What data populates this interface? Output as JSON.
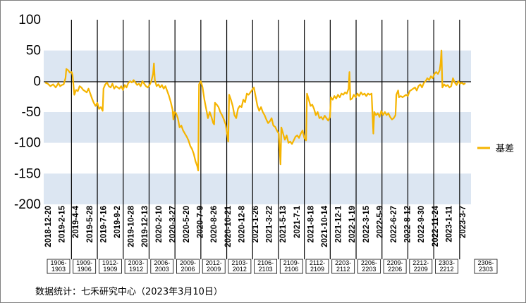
{
  "chart_data": {
    "type": "line",
    "ylim": [
      -200,
      100
    ],
    "yticks": [
      100,
      50,
      0,
      -50,
      -100,
      -150,
      -200
    ],
    "grid": "alternating horizontal bands",
    "legend_position": "right",
    "x_tick_labels": [
      "2018-12-20",
      "2019-2-15",
      "2019-4-4",
      "2019-5-28",
      "2019-7-16",
      "2019-9-2",
      "2019-10-28",
      "2019-12-13",
      "2020-2-10",
      "2020-3-27",
      "2020-5-20",
      "2020-7-9",
      "2020-8-26",
      "2020-10-21",
      "2020-12-8",
      "2021-1-26",
      "2021-3-22",
      "2021-5-13",
      "2021-7-1",
      "2021-8-18",
      "2021-10-14",
      "2021-12-1",
      "2022-1-19",
      "2022-3-15",
      "2022-5-9",
      "2022-6-27",
      "2022-8-12",
      "2022-9-30",
      "2022-11-24",
      "2023-1-11",
      "2023-3-7"
    ],
    "contract_labels": [
      "1906-1903",
      "1909-1906",
      "1912-1909",
      "2003-1912",
      "2006-2003",
      "2009-2006",
      "2012-2009",
      "2103-2012",
      "2106-2103",
      "2109-2106",
      "2112-2109",
      "2203-2112",
      "2206-2203",
      "2209-2206",
      "2212-2209",
      "2303-2212",
      "2306-2303"
    ],
    "series": [
      {
        "name": "基差",
        "color": "#f5b400",
        "points": [
          [
            0,
            -2
          ],
          [
            3,
            -4
          ],
          [
            6,
            -8
          ],
          [
            9,
            -5
          ],
          [
            12,
            -10
          ],
          [
            15,
            -3
          ],
          [
            17,
            -8
          ],
          [
            19,
            -6
          ],
          [
            21,
            -5
          ],
          [
            23,
            5
          ],
          [
            24,
            20
          ],
          [
            26,
            18
          ],
          [
            28,
            14
          ],
          [
            30,
            15
          ],
          [
            31,
            10
          ],
          [
            33,
            -22
          ],
          [
            35,
            -14
          ],
          [
            37,
            -16
          ],
          [
            39,
            -8
          ],
          [
            41,
            -10
          ],
          [
            43,
            -14
          ],
          [
            45,
            -16
          ],
          [
            47,
            -18
          ],
          [
            49,
            -12
          ],
          [
            51,
            -20
          ],
          [
            53,
            -28
          ],
          [
            55,
            -35
          ],
          [
            57,
            -40
          ],
          [
            59,
            -35
          ],
          [
            61,
            -45
          ],
          [
            63,
            -42
          ],
          [
            65,
            -48
          ],
          [
            66,
            -12
          ],
          [
            68,
            -5
          ],
          [
            70,
            -2
          ],
          [
            72,
            -8
          ],
          [
            74,
            -10
          ],
          [
            76,
            -4
          ],
          [
            78,
            -12
          ],
          [
            80,
            -8
          ],
          [
            82,
            -10
          ],
          [
            84,
            -12
          ],
          [
            86,
            -8
          ],
          [
            88,
            -14
          ],
          [
            90,
            -6
          ],
          [
            92,
            -10
          ],
          [
            94,
            -3
          ],
          [
            96,
            0
          ],
          [
            98,
            -2
          ],
          [
            100,
            2
          ],
          [
            102,
            -2
          ],
          [
            104,
            -6
          ],
          [
            106,
            -4
          ],
          [
            108,
            -8
          ],
          [
            110,
            0
          ],
          [
            112,
            -4
          ],
          [
            114,
            -8
          ],
          [
            116,
            -10
          ],
          [
            118,
            -6
          ],
          [
            120,
            0
          ],
          [
            122,
            12
          ],
          [
            123,
            29
          ],
          [
            124,
            2
          ],
          [
            126,
            -8
          ],
          [
            128,
            -5
          ],
          [
            130,
            -10
          ],
          [
            132,
            -6
          ],
          [
            134,
            -12
          ],
          [
            136,
            -8
          ],
          [
            138,
            -16
          ],
          [
            140,
            -24
          ],
          [
            142,
            -34
          ],
          [
            144,
            -46
          ],
          [
            145,
            -62
          ],
          [
            146,
            -50
          ],
          [
            148,
            -52
          ],
          [
            150,
            -60
          ],
          [
            152,
            -75
          ],
          [
            154,
            -72
          ],
          [
            156,
            -80
          ],
          [
            158,
            -85
          ],
          [
            160,
            -90
          ],
          [
            162,
            -96
          ],
          [
            164,
            -105
          ],
          [
            166,
            -110
          ],
          [
            168,
            -118
          ],
          [
            170,
            -130
          ],
          [
            172,
            -138
          ],
          [
            173,
            -145
          ],
          [
            174,
            -5
          ],
          [
            176,
            0
          ],
          [
            178,
            -10
          ],
          [
            180,
            -30
          ],
          [
            182,
            -45
          ],
          [
            184,
            -60
          ],
          [
            186,
            -50
          ],
          [
            188,
            -58
          ],
          [
            190,
            -68
          ],
          [
            191,
            -70
          ],
          [
            192,
            -35
          ],
          [
            194,
            -38
          ],
          [
            196,
            -42
          ],
          [
            198,
            -50
          ],
          [
            200,
            -55
          ],
          [
            202,
            -62
          ],
          [
            204,
            -70
          ],
          [
            206,
            -88
          ],
          [
            207,
            -98
          ],
          [
            208,
            -22
          ],
          [
            210,
            -30
          ],
          [
            212,
            -40
          ],
          [
            214,
            -55
          ],
          [
            216,
            -60
          ],
          [
            218,
            -45
          ],
          [
            220,
            -40
          ],
          [
            222,
            -42
          ],
          [
            224,
            -30
          ],
          [
            226,
            -34
          ],
          [
            228,
            -20
          ],
          [
            230,
            -22
          ],
          [
            232,
            -18
          ],
          [
            234,
            -14
          ],
          [
            236,
            -10
          ],
          [
            238,
            -25
          ],
          [
            240,
            -40
          ],
          [
            242,
            -48
          ],
          [
            244,
            -42
          ],
          [
            246,
            -50
          ],
          [
            248,
            -55
          ],
          [
            250,
            -62
          ],
          [
            252,
            -68
          ],
          [
            254,
            -65
          ],
          [
            256,
            -60
          ],
          [
            258,
            -72
          ],
          [
            260,
            -74
          ],
          [
            262,
            -80
          ],
          [
            264,
            -85
          ],
          [
            266,
            -135
          ],
          [
            267,
            -75
          ],
          [
            269,
            -85
          ],
          [
            271,
            -95
          ],
          [
            273,
            -88
          ],
          [
            275,
            -100
          ],
          [
            277,
            -98
          ],
          [
            279,
            -102
          ],
          [
            281,
            -96
          ],
          [
            283,
            -90
          ],
          [
            285,
            -88
          ],
          [
            287,
            -92
          ],
          [
            289,
            -85
          ],
          [
            291,
            -80
          ],
          [
            293,
            -92
          ],
          [
            295,
            -96
          ],
          [
            296,
            -20
          ],
          [
            298,
            -30
          ],
          [
            300,
            -40
          ],
          [
            302,
            -38
          ],
          [
            304,
            -45
          ],
          [
            306,
            -55
          ],
          [
            308,
            -50
          ],
          [
            310,
            -60
          ],
          [
            312,
            -58
          ],
          [
            314,
            -62
          ],
          [
            316,
            -56
          ],
          [
            318,
            -60
          ],
          [
            320,
            -64
          ],
          [
            322,
            -58
          ],
          [
            323,
            -26
          ],
          [
            325,
            -30
          ],
          [
            327,
            -24
          ],
          [
            329,
            -28
          ],
          [
            331,
            -22
          ],
          [
            333,
            -26
          ],
          [
            335,
            -20
          ],
          [
            337,
            -22
          ],
          [
            339,
            -18
          ],
          [
            341,
            -20
          ],
          [
            343,
            -12
          ],
          [
            344,
            15
          ],
          [
            345,
            -30
          ],
          [
            347,
            -28
          ],
          [
            349,
            -22
          ],
          [
            351,
            -26
          ],
          [
            353,
            -20
          ],
          [
            355,
            -24
          ],
          [
            357,
            -18
          ],
          [
            359,
            -22
          ],
          [
            361,
            -20
          ],
          [
            363,
            -24
          ],
          [
            365,
            -20
          ],
          [
            367,
            -22
          ],
          [
            369,
            -20
          ],
          [
            371,
            -85
          ],
          [
            372,
            -50
          ],
          [
            374,
            -55
          ],
          [
            376,
            -52
          ],
          [
            378,
            -58
          ],
          [
            380,
            -48
          ],
          [
            382,
            -55
          ],
          [
            384,
            -50
          ],
          [
            386,
            -55
          ],
          [
            388,
            -52
          ],
          [
            390,
            -58
          ],
          [
            392,
            -62
          ],
          [
            394,
            -60
          ],
          [
            396,
            -55
          ],
          [
            397,
            -22
          ],
          [
            399,
            -15
          ],
          [
            400,
            -26
          ],
          [
            402,
            -24
          ],
          [
            404,
            -26
          ],
          [
            406,
            -24
          ],
          [
            408,
            -22
          ],
          [
            410,
            -24
          ],
          [
            412,
            -16
          ],
          [
            414,
            -14
          ],
          [
            416,
            -12
          ],
          [
            418,
            -10
          ],
          [
            420,
            -15
          ],
          [
            422,
            -8
          ],
          [
            424,
            -5
          ],
          [
            426,
            -10
          ],
          [
            428,
            -3
          ],
          [
            430,
            0
          ],
          [
            432,
            5
          ],
          [
            434,
            2
          ],
          [
            436,
            8
          ],
          [
            438,
            5
          ],
          [
            440,
            12
          ],
          [
            442,
            15
          ],
          [
            444,
            12
          ],
          [
            446,
            18
          ],
          [
            447,
            30
          ],
          [
            448,
            50
          ],
          [
            449,
            -10
          ],
          [
            451,
            -5
          ],
          [
            453,
            -8
          ],
          [
            455,
            -6
          ],
          [
            457,
            -10
          ],
          [
            459,
            -8
          ],
          [
            461,
            5
          ],
          [
            463,
            -2
          ],
          [
            465,
            -6
          ],
          [
            467,
            0
          ],
          [
            469,
            -4
          ],
          [
            471,
            -2
          ],
          [
            473,
            -5
          ],
          [
            475,
            -3
          ]
        ]
      }
    ]
  },
  "source": "数据统计：七禾研究中心（2023年3月10日）"
}
